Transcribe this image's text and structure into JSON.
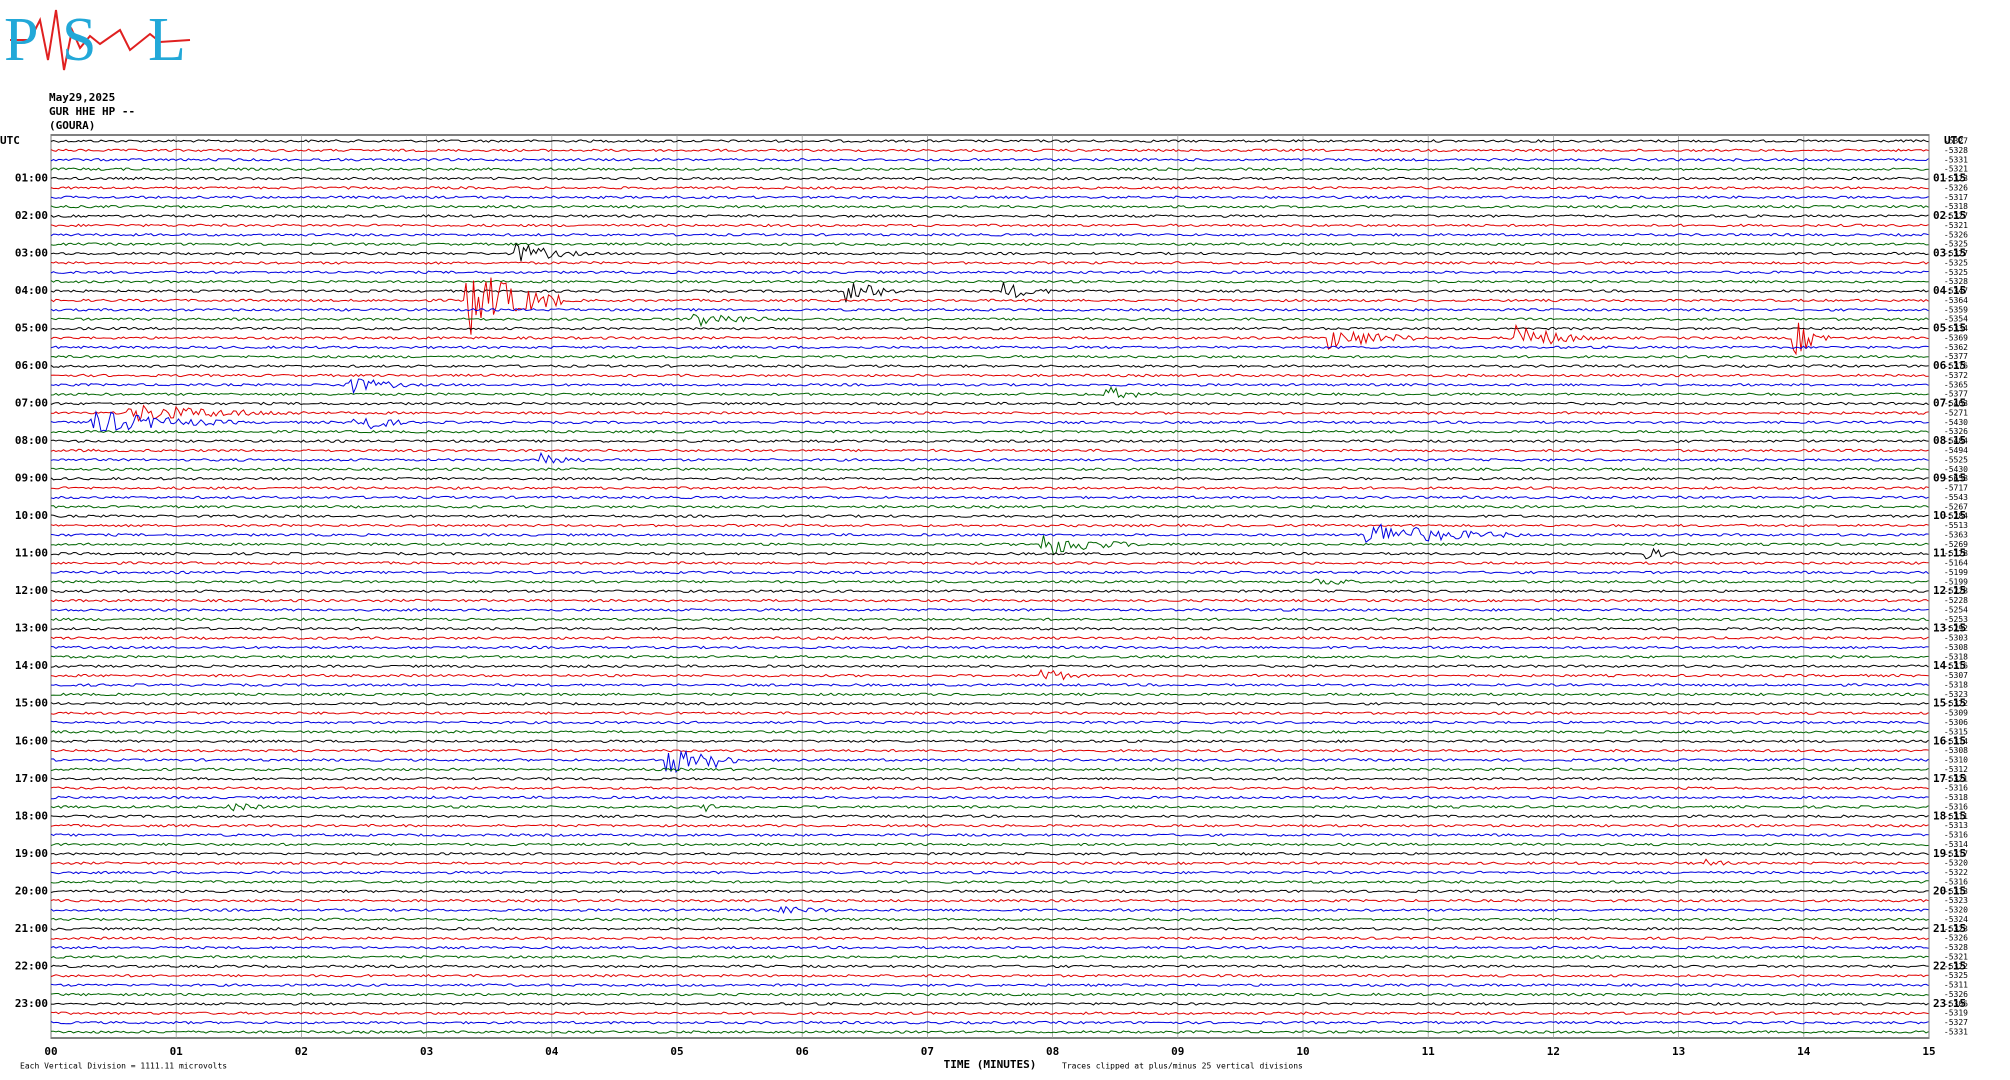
{
  "header": {
    "logo": [
      "P",
      "S",
      "L"
    ],
    "date": "May29,2025",
    "station": "GUR HHE HP --",
    "site": "(GOURA)"
  },
  "left_axis": {
    "title": "UTC",
    "labels": [
      "01:00",
      "02:00",
      "03:00",
      "04:00",
      "05:00",
      "06:00",
      "07:00",
      "08:00",
      "09:00",
      "10:00",
      "11:00",
      "12:00",
      "13:00",
      "14:00",
      "15:00",
      "16:00",
      "17:00",
      "18:00",
      "19:00",
      "20:00",
      "21:00",
      "22:00",
      "23:00"
    ]
  },
  "right_axis": {
    "title": "UTC",
    "labels": [
      "01:15",
      "02:15",
      "03:15",
      "04:15",
      "05:15",
      "06:15",
      "07:15",
      "08:15",
      "09:15",
      "10:15",
      "11:15",
      "12:15",
      "13:15",
      "14:15",
      "15:15",
      "16:15",
      "17:15",
      "18:15",
      "19:15",
      "20:15",
      "21:15",
      "22:15",
      "23:15"
    ],
    "trace_values": [
      -5327,
      -5328,
      -5331,
      -5321,
      -5323,
      -5326,
      -5317,
      -5318,
      -5327,
      -5321,
      -5326,
      -5325,
      -5327,
      -5325,
      -5325,
      -5328,
      -5347,
      -5364,
      -5359,
      -5354,
      -5334,
      -5369,
      -5362,
      -5377,
      -5376,
      -5372,
      -5365,
      -5377,
      -5463,
      -5271,
      -5430,
      -5326,
      -5484,
      -5494,
      -5525,
      -5430,
      -5658,
      -5717,
      -5543,
      -5267,
      -5284,
      -5513,
      -5363,
      -5269,
      -5128,
      -5164,
      -5199,
      -5199,
      -5228,
      -5228,
      -5254,
      -5253,
      -5292,
      -5303,
      -5308,
      -5318,
      -5316,
      -5307,
      -5318,
      -5323,
      -5322,
      -5309,
      -5306,
      -5315,
      -5314,
      -5308,
      -5310,
      -5312,
      -5321,
      -5316,
      -5318,
      -5316,
      -5311,
      -5313,
      -5316,
      -5314,
      -5317,
      -5320,
      -5322,
      -5316,
      -5313,
      -5323,
      -5320,
      -5324,
      -5323,
      -5326,
      -5328,
      -5321,
      -5322,
      -5325,
      -5311,
      -5326,
      -5306,
      -5319,
      -5327,
      -5331
    ]
  },
  "x_axis": {
    "title": "TIME (MINUTES)",
    "ticks": [
      "00",
      "01",
      "02",
      "03",
      "04",
      "05",
      "06",
      "07",
      "08",
      "09",
      "10",
      "11",
      "12",
      "13",
      "14",
      "15"
    ]
  },
  "footer": {
    "scale": "Each Vertical Division = 1111.11 microvolts",
    "clip": "Traces clipped at plus/minus 25 vertical divisions"
  }
}
